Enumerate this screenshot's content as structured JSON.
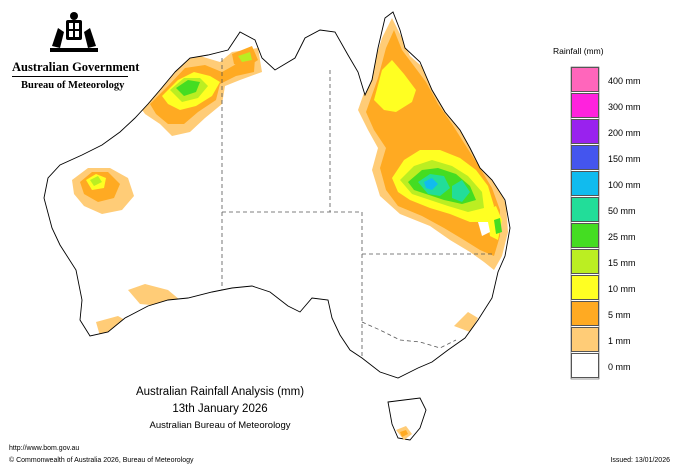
{
  "header": {
    "government": "Australian Government",
    "bureau": "Bureau of Meteorology",
    "crest_icon": "coat-of-arms-icon"
  },
  "legend": {
    "title": "Rainfall (mm)",
    "items": [
      {
        "label": "400 mm",
        "color": "#ff66bb"
      },
      {
        "label": "300 mm",
        "color": "#ff22dd"
      },
      {
        "label": "200 mm",
        "color": "#9922ee"
      },
      {
        "label": "150 mm",
        "color": "#4455ee"
      },
      {
        "label": "100 mm",
        "color": "#11bbee"
      },
      {
        "label": "50 mm",
        "color": "#22dd99"
      },
      {
        "label": "25 mm",
        "color": "#44dd22"
      },
      {
        "label": "15 mm",
        "color": "#bbee22"
      },
      {
        "label": "10 mm",
        "color": "#ffff22"
      },
      {
        "label": "5 mm",
        "color": "#ffaa22"
      },
      {
        "label": "1 mm",
        "color": "#ffcc77"
      },
      {
        "label": "0 mm",
        "color": "#ffffff"
      }
    ]
  },
  "caption": {
    "title": "Australian Rainfall Analysis (mm)",
    "date": "13th January 2026",
    "source": "Australian Bureau of Meteorology"
  },
  "footer": {
    "url": "http://www.bom.gov.au",
    "copyright": "© Commonwealth of Australia 2026, Bureau of Meteorology",
    "issued": "Issued: 13/01/2026"
  },
  "colors": {
    "coast": "#000000",
    "border": "#555555",
    "band_1mm": "#ffcc77",
    "band_5mm": "#ffaa22",
    "band_10mm": "#ffff22",
    "band_15mm": "#bbee22",
    "band_25mm": "#44dd22",
    "band_50mm": "#22dd99",
    "band_100mm": "#11bbee"
  }
}
